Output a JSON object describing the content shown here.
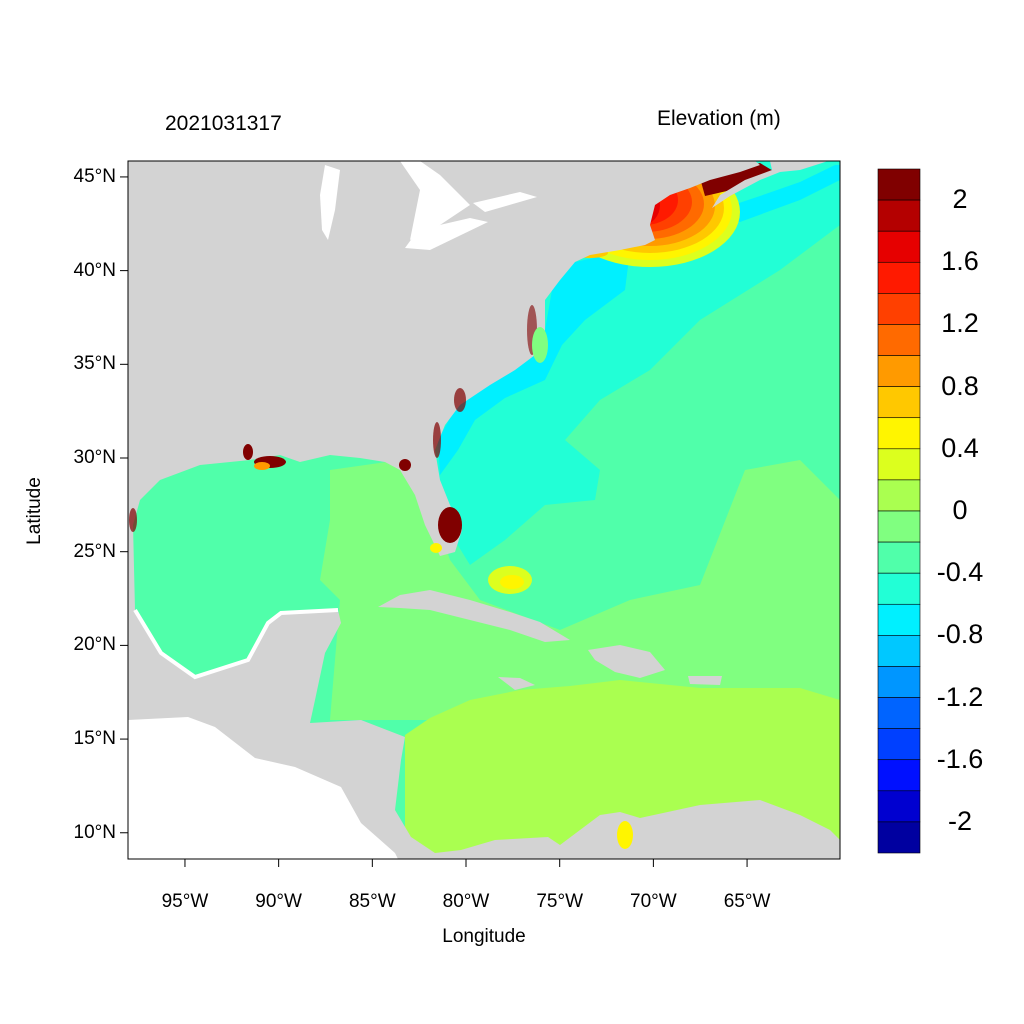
{
  "title": {
    "timestamp": "2021031317",
    "variable": "Elevation (m)"
  },
  "axes": {
    "xlabel": "Longitude",
    "ylabel": "Latitude",
    "lon_ticks": [
      {
        "value": -95,
        "label": "95°W"
      },
      {
        "value": -90,
        "label": "90°W"
      },
      {
        "value": -85,
        "label": "85°W"
      },
      {
        "value": -80,
        "label": "80°W"
      },
      {
        "value": -75,
        "label": "75°W"
      },
      {
        "value": -70,
        "label": "70°W"
      },
      {
        "value": -65,
        "label": "65°W"
      }
    ],
    "lat_ticks": [
      {
        "value": 45,
        "label": "45°N"
      },
      {
        "value": 40,
        "label": "40°N"
      },
      {
        "value": 35,
        "label": "35°N"
      },
      {
        "value": 30,
        "label": "30°N"
      },
      {
        "value": 25,
        "label": "25°N"
      },
      {
        "value": 20,
        "label": "20°N"
      },
      {
        "value": 15,
        "label": "15°N"
      },
      {
        "value": 10,
        "label": "10°N"
      }
    ],
    "lon_range": [
      -98.04,
      -60.04
    ],
    "lat_range": [
      8.6,
      45.85
    ]
  },
  "colorbar": {
    "colors": [
      "#800000",
      "#b40000",
      "#e60000",
      "#ff1a00",
      "#ff4000",
      "#ff6a00",
      "#ff9a00",
      "#ffc800",
      "#fff500",
      "#dcff1e",
      "#aaff50",
      "#80ff80",
      "#50ffaa",
      "#22ffd6",
      "#00f0ff",
      "#00c8ff",
      "#0096ff",
      "#0064ff",
      "#0040ff",
      "#0010ff",
      "#0000d0",
      "#0000a0"
    ],
    "labels": [
      "2",
      "1.6",
      "1.2",
      "0.8",
      "0.4",
      "0",
      "-0.4",
      "-0.8",
      "-1.2",
      "-1.6",
      "-2"
    ]
  },
  "colors": {
    "land": "#d3d3d3",
    "lakes": "#ffffff"
  }
}
